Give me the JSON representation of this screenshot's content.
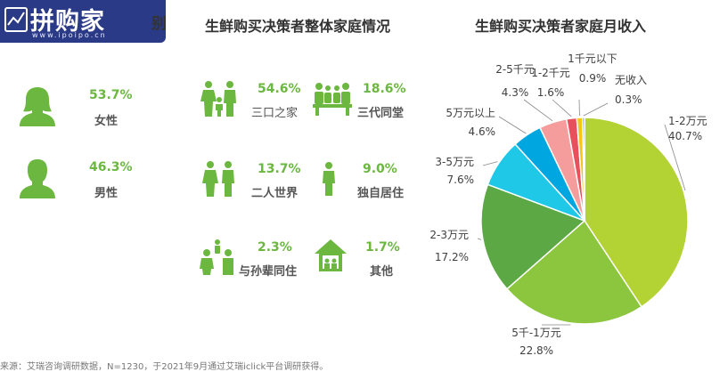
{
  "logo": {
    "text": "拼购家",
    "sub": "www.ipoipo.cn"
  },
  "section_gender": {
    "title_fragment": "别",
    "items": [
      {
        "pct": "53.7%",
        "label": "女性"
      },
      {
        "pct": "46.3%",
        "label": "男性"
      }
    ]
  },
  "section_family": {
    "title": "生鲜购买决策者整体家庭情况",
    "items": [
      {
        "pct": "54.6%",
        "label": "三口之家"
      },
      {
        "pct": "18.6%",
        "label": "三代同堂"
      },
      {
        "pct": "13.7%",
        "label": "二人世界"
      },
      {
        "pct": "9.0%",
        "label": "独自居住"
      },
      {
        "pct": "2.3%",
        "label": "与孙辈同住"
      },
      {
        "pct": "1.7%",
        "label": "其他"
      }
    ]
  },
  "source": "来源：艾瑞咨询调研数据，N=1230，于2021年9月通过艾瑞iclick平台调研获得。",
  "chart_data": {
    "type": "pie",
    "title": "生鲜购买决策者家庭月收入",
    "slices": [
      {
        "label": "1-2万元",
        "value": 40.7,
        "display": "40.7%",
        "color": "#b3d234"
      },
      {
        "label": "5千-1万元",
        "value": 22.8,
        "display": "22.8%",
        "color": "#8cc63e"
      },
      {
        "label": "2-3万元",
        "value": 17.2,
        "display": "17.2%",
        "color": "#5ba844"
      },
      {
        "label": "3-5万元",
        "value": 7.6,
        "display": "7.6%",
        "color": "#1ec8e6"
      },
      {
        "label": "5万元以上",
        "value": 4.6,
        "display": "4.6%",
        "color": "#00a6e0"
      },
      {
        "label": "2-5千元",
        "value": 4.3,
        "display": "4.3%",
        "color": "#f59c9c"
      },
      {
        "label": "1-2千元",
        "value": 1.6,
        "display": "1.6%",
        "color": "#e8505b"
      },
      {
        "label": "1千元以下",
        "value": 0.9,
        "display": "0.9%",
        "color": "#f5c618"
      },
      {
        "label": "无收入",
        "value": 0.3,
        "display": "0.3%",
        "color": "#2f6bb8"
      }
    ]
  }
}
